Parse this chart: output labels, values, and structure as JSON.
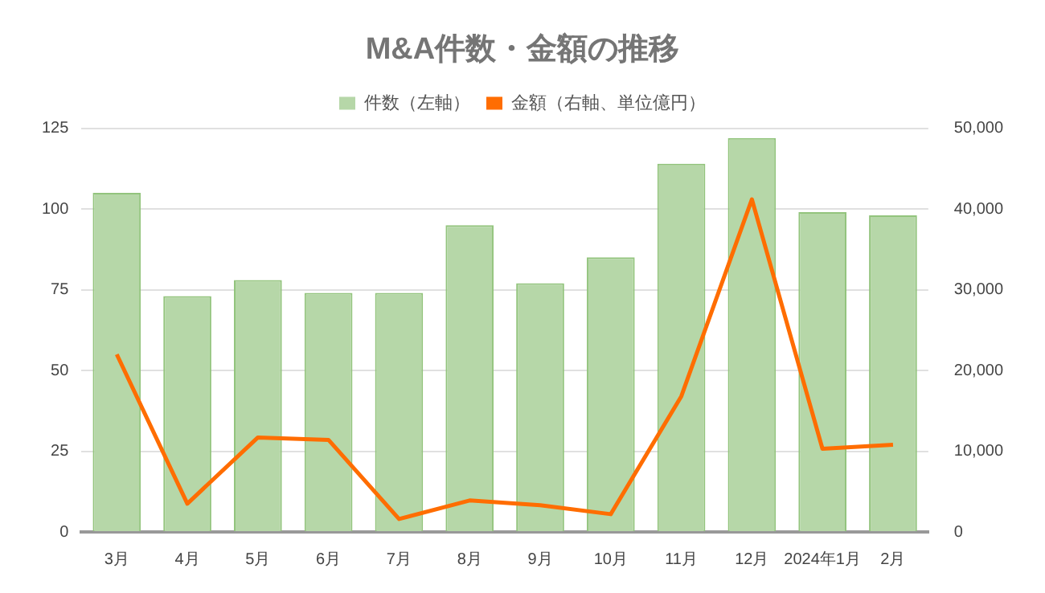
{
  "chart_data": {
    "type": "bar",
    "title": "M&A件数・金額の推移",
    "categories": [
      "3月",
      "4月",
      "5月",
      "6月",
      "7月",
      "8月",
      "9月",
      "10月",
      "11月",
      "12月",
      "2024年1月",
      "2月"
    ],
    "series": [
      {
        "name": "件数（左軸）",
        "type": "bar",
        "color": "#b6d7a8",
        "values": [
          105,
          73,
          78,
          74,
          74,
          95,
          77,
          85,
          114,
          122,
          99,
          98
        ]
      },
      {
        "name": "金額（右軸、単位億円）",
        "type": "line",
        "axis": "y2",
        "color": "#ff6d01",
        "values": [
          22000,
          3500,
          11700,
          11400,
          1600,
          3900,
          3300,
          2200,
          16800,
          41200,
          10300,
          10800
        ]
      }
    ],
    "ylim": [
      0,
      125
    ],
    "yticks": [
      0,
      25,
      50,
      75,
      100,
      125
    ],
    "y2lim": [
      0,
      50000
    ],
    "y2ticks": [
      0,
      {
        "value": 10000,
        "label": "10,000"
      },
      {
        "value": 20000,
        "label": "20,000"
      },
      {
        "value": 30000,
        "label": "30,000"
      },
      {
        "value": 40000,
        "label": "40,000"
      },
      {
        "value": 50000,
        "label": "50,000"
      }
    ],
    "grid": "y",
    "legend": "top",
    "marker": "none"
  }
}
